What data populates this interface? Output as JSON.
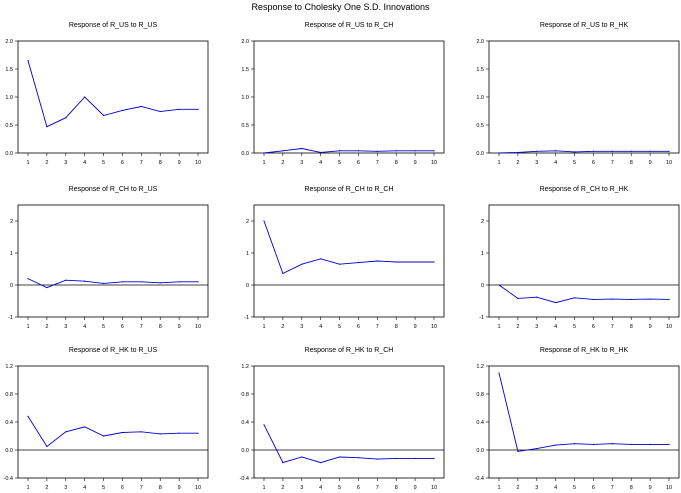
{
  "title": "Response to Cholesky One S.D. Innovations",
  "colors": {
    "line": "#0000cc",
    "axis": "#000000",
    "zero": "#000000",
    "background": "#ffffff"
  },
  "chart_data": [
    {
      "type": "line",
      "title": "Response of R_US to R_US",
      "x": [
        1,
        2,
        3,
        4,
        5,
        6,
        7,
        8,
        9,
        10
      ],
      "values": [
        1.65,
        0.47,
        0.63,
        1.0,
        0.67,
        0.76,
        0.83,
        0.74,
        0.78,
        0.78
      ],
      "ylim": [
        0.0,
        2.0
      ],
      "yticks": [
        "0.0",
        "0.5",
        "1.0",
        "1.5",
        "2.0"
      ],
      "ytick_values": [
        0,
        0.5,
        1,
        1.5,
        2
      ],
      "zero_line": false
    },
    {
      "type": "line",
      "title": "Response of R_US to R_CH",
      "x": [
        1,
        2,
        3,
        4,
        5,
        6,
        7,
        8,
        9,
        10
      ],
      "values": [
        0.0,
        0.04,
        0.08,
        0.01,
        0.04,
        0.04,
        0.03,
        0.04,
        0.04,
        0.04
      ],
      "ylim": [
        0.0,
        2.0
      ],
      "yticks": [
        "0.0",
        "0.5",
        "1.0",
        "1.5",
        "2.0"
      ],
      "ytick_values": [
        0,
        0.5,
        1,
        1.5,
        2
      ],
      "zero_line": false
    },
    {
      "type": "line",
      "title": "Response of R_US to R_HK",
      "x": [
        1,
        2,
        3,
        4,
        5,
        6,
        7,
        8,
        9,
        10
      ],
      "values": [
        0.0,
        0.01,
        0.03,
        0.04,
        0.02,
        0.03,
        0.03,
        0.03,
        0.03,
        0.03
      ],
      "ylim": [
        0.0,
        2.0
      ],
      "yticks": [
        "0.0",
        "0.5",
        "1.0",
        "1.5",
        "2.0"
      ],
      "ytick_values": [
        0,
        0.5,
        1,
        1.5,
        2
      ],
      "zero_line": false
    },
    {
      "type": "line",
      "title": "Response of R_CH to R_US",
      "x": [
        1,
        2,
        3,
        4,
        5,
        6,
        7,
        8,
        9,
        10
      ],
      "values": [
        0.2,
        -0.08,
        0.15,
        0.12,
        0.05,
        0.1,
        0.1,
        0.07,
        0.1,
        0.1
      ],
      "ylim": [
        -1,
        2.5
      ],
      "yticks": [
        "-1",
        "0",
        "1",
        "2"
      ],
      "ytick_values": [
        -1,
        0,
        1,
        2
      ],
      "zero_line": true
    },
    {
      "type": "line",
      "title": "Response of R_CH to R_CH",
      "x": [
        1,
        2,
        3,
        4,
        5,
        6,
        7,
        8,
        9,
        10
      ],
      "values": [
        2.0,
        0.36,
        0.65,
        0.82,
        0.65,
        0.7,
        0.75,
        0.72,
        0.72,
        0.72
      ],
      "ylim": [
        -1,
        2.5
      ],
      "yticks": [
        "-1",
        "0",
        "1",
        "2"
      ],
      "ytick_values": [
        -1,
        0,
        1,
        2
      ],
      "zero_line": true
    },
    {
      "type": "line",
      "title": "Response of R_CH to R_HK",
      "x": [
        1,
        2,
        3,
        4,
        5,
        6,
        7,
        8,
        9,
        10
      ],
      "values": [
        0.0,
        -0.42,
        -0.38,
        -0.55,
        -0.4,
        -0.45,
        -0.44,
        -0.45,
        -0.44,
        -0.45
      ],
      "ylim": [
        -1,
        2.5
      ],
      "yticks": [
        "-1",
        "0",
        "1",
        "2"
      ],
      "ytick_values": [
        -1,
        0,
        1,
        2
      ],
      "zero_line": true
    },
    {
      "type": "line",
      "title": "Response of R_HK to R_US",
      "x": [
        1,
        2,
        3,
        4,
        5,
        6,
        7,
        8,
        9,
        10
      ],
      "values": [
        0.48,
        0.05,
        0.26,
        0.33,
        0.2,
        0.25,
        0.26,
        0.23,
        0.24,
        0.24
      ],
      "ylim": [
        -0.4,
        1.2
      ],
      "yticks": [
        "-0.4",
        "0.0",
        "0.4",
        "0.8",
        "1.2"
      ],
      "ytick_values": [
        -0.4,
        0,
        0.4,
        0.8,
        1.2
      ],
      "zero_line": true
    },
    {
      "type": "line",
      "title": "Response of R_HK to R_CH",
      "x": [
        1,
        2,
        3,
        4,
        5,
        6,
        7,
        8,
        9,
        10
      ],
      "values": [
        0.36,
        -0.18,
        -0.1,
        -0.18,
        -0.1,
        -0.11,
        -0.13,
        -0.12,
        -0.12,
        -0.12
      ],
      "ylim": [
        -0.4,
        1.2
      ],
      "yticks": [
        "-0.4",
        "0.0",
        "0.4",
        "0.8",
        "1.2"
      ],
      "ytick_values": [
        -0.4,
        0,
        0.4,
        0.8,
        1.2
      ],
      "zero_line": true
    },
    {
      "type": "line",
      "title": "Response of R_HK to R_HK",
      "x": [
        1,
        2,
        3,
        4,
        5,
        6,
        7,
        8,
        9,
        10
      ],
      "values": [
        1.1,
        -0.02,
        0.02,
        0.07,
        0.09,
        0.08,
        0.09,
        0.08,
        0.08,
        0.08
      ],
      "ylim": [
        -0.4,
        1.2
      ],
      "yticks": [
        "-0.4",
        "0.0",
        "0.4",
        "0.8",
        "1.2"
      ],
      "ytick_values": [
        -0.4,
        0,
        0.4,
        0.8,
        1.2
      ],
      "zero_line": true
    }
  ]
}
